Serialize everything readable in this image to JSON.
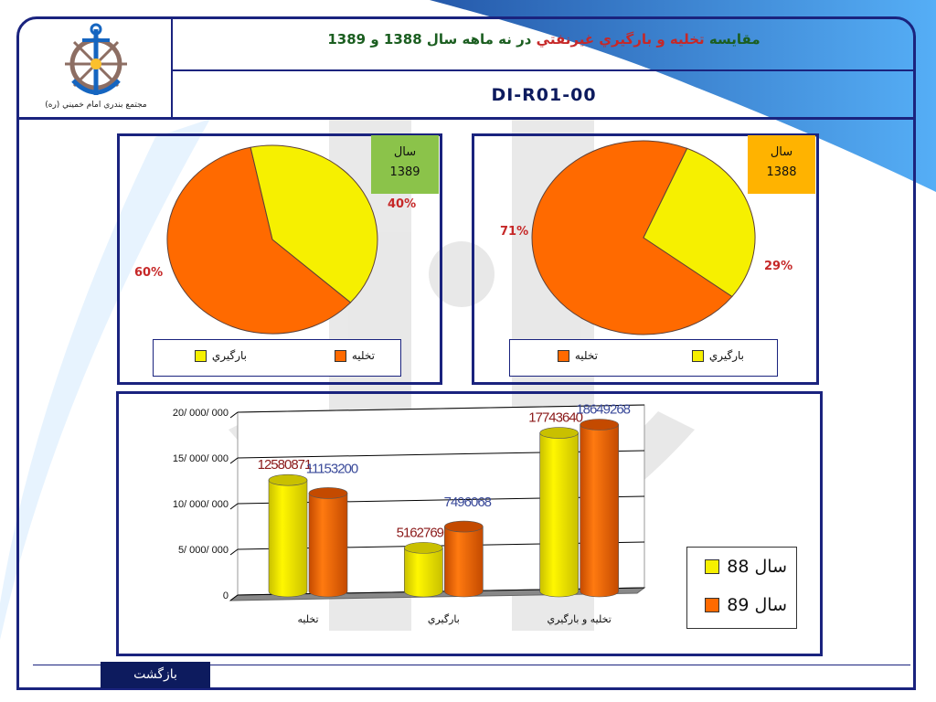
{
  "header": {
    "org_name": "مجتمع بندري امام خميني (ره)",
    "title_part1": "مقايسه",
    "title_part2": "تخليه و بارگيري غيرنفتي",
    "title_part3": "در نه ماهه سال 1388 و 1389",
    "code": "DI-R01-00"
  },
  "colors": {
    "yellow": "#f6f000",
    "orange": "#ff6a00",
    "frame": "#1a237e",
    "pct_red": "#c62828",
    "value_red": "#8b1a1a",
    "value_blue": "#3a4a9a"
  },
  "pies": {
    "p1389": {
      "year_label": "سال",
      "year": "1389",
      "pct_unload": "60%",
      "pct_load": "40%"
    },
    "p1388": {
      "year_label": "سال",
      "year": "1388",
      "pct_unload": "71%",
      "pct_load": "29%"
    },
    "legend_unload": "تخليه",
    "legend_load": "بارگيري"
  },
  "bar_legend": {
    "s88": "سال 88",
    "s89": "سال 89"
  },
  "back_button": "بازگشت",
  "chart_data": [
    {
      "type": "pie",
      "name": "1389",
      "slices": [
        {
          "label": "تخليه",
          "value": 60,
          "color": "#ff6a00"
        },
        {
          "label": "بارگيري",
          "value": 40,
          "color": "#f6f000"
        }
      ]
    },
    {
      "type": "pie",
      "name": "1388",
      "slices": [
        {
          "label": "تخليه",
          "value": 71,
          "color": "#ff6a00"
        },
        {
          "label": "بارگيري",
          "value": 29,
          "color": "#f6f000"
        }
      ]
    },
    {
      "type": "bar",
      "categories": [
        "تخليه",
        "بارگيري",
        "تخليه و بارگيري"
      ],
      "series": [
        {
          "name": "سال 88",
          "color": "#f6f000",
          "values": [
            12580871,
            5162769,
            17743640
          ]
        },
        {
          "name": "سال 89",
          "color": "#ff6a00",
          "values": [
            11153200,
            7496068,
            18649268
          ]
        }
      ],
      "value_labels": {
        "s88": [
          "12580871",
          "5162769",
          "17743640"
        ],
        "s89": [
          "11153200",
          "7496068",
          "18649268"
        ]
      },
      "yticks": [
        {
          "value": 0,
          "label": "0"
        },
        {
          "value": 5000000,
          "label": "5/ 000/ 000"
        },
        {
          "value": 10000000,
          "label": "10/ 000/ 000"
        },
        {
          "value": 15000000,
          "label": "15/ 000/ 000"
        },
        {
          "value": 20000000,
          "label": "20/ 000/ 000"
        }
      ],
      "ylim": [
        0,
        20000000
      ],
      "grid": true,
      "legend": "right"
    }
  ]
}
